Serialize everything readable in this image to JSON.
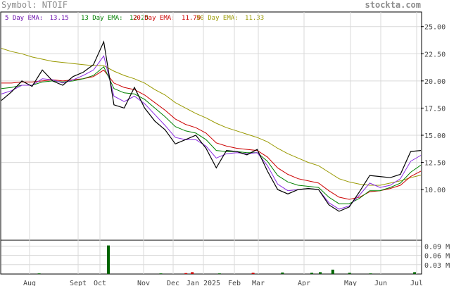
{
  "header": {
    "symbol_label": "Symbol: NTOIF",
    "brand": "stockta.com"
  },
  "legend": [
    {
      "label": "5 Day EMA:",
      "value": "13.15",
      "color": "#000000",
      "text_color": "#6a0dad"
    },
    {
      "label": "13 Day EMA:",
      "value": "12.25",
      "color": "#008000",
      "text_color": "#008000"
    },
    {
      "label": "20 Day EMA:",
      "value": "11.70",
      "color": "#cc0000",
      "text_color": "#cc0000"
    },
    {
      "label": "50 Day EMA:",
      "value": "11.33",
      "color": "#999900",
      "text_color": "#999900"
    }
  ],
  "chart_data": [
    {
      "type": "line",
      "ylim": [
        8,
        25.5
      ],
      "yticks": [
        "25.00",
        "22.50",
        "20.00",
        "17.50",
        "15.00",
        "12.50",
        "10.00"
      ],
      "xticks": [
        "Aug",
        "Sept",
        "Oct",
        "Nov",
        "Dec",
        "Jan 2025",
        "Feb",
        "Mar",
        "Apr",
        "May",
        "Jun",
        "Jul"
      ],
      "grid": true,
      "series": [
        {
          "name": "Price",
          "color": "#000000",
          "values": [
            18.2,
            19.0,
            20.0,
            19.5,
            21.0,
            20.0,
            19.6,
            20.4,
            20.8,
            21.5,
            23.6,
            17.8,
            17.5,
            19.4,
            17.5,
            16.3,
            15.5,
            14.2,
            14.6,
            15.0,
            13.8,
            12.0,
            13.6,
            13.5,
            13.2,
            13.7,
            11.7,
            10.0,
            9.6,
            10.0,
            10.1,
            10.0,
            8.6,
            8.0,
            8.4,
            9.8,
            11.3,
            11.2,
            11.1,
            11.4,
            13.5,
            13.6
          ]
        },
        {
          "name": "5 Day EMA",
          "color": "#8a2be2",
          "values": [
            18.8,
            19.1,
            19.6,
            19.6,
            20.2,
            20.1,
            19.8,
            20.1,
            20.5,
            21.0,
            22.3,
            18.6,
            18.1,
            18.6,
            17.9,
            16.9,
            15.9,
            14.8,
            14.6,
            14.6,
            14.0,
            12.9,
            13.3,
            13.4,
            13.3,
            13.4,
            12.2,
            10.5,
            9.9,
            10.0,
            10.1,
            10.0,
            8.8,
            8.2,
            8.5,
            9.5,
            10.6,
            10.2,
            10.4,
            11.0,
            12.6,
            13.15
          ]
        },
        {
          "name": "13 Day EMA",
          "color": "#008000",
          "values": [
            19.3,
            19.4,
            19.6,
            19.6,
            19.9,
            20.0,
            19.9,
            20.0,
            20.2,
            20.5,
            21.3,
            19.3,
            18.9,
            18.8,
            18.3,
            17.5,
            16.7,
            15.8,
            15.4,
            15.2,
            14.6,
            13.6,
            13.5,
            13.5,
            13.4,
            13.4,
            12.6,
            11.3,
            10.7,
            10.4,
            10.3,
            10.2,
            9.3,
            8.7,
            8.7,
            9.2,
            9.9,
            9.9,
            10.2,
            10.6,
            11.6,
            12.25
          ]
        },
        {
          "name": "20 Day EMA",
          "color": "#cc0000",
          "values": [
            19.8,
            19.8,
            19.9,
            19.9,
            20.0,
            20.1,
            20.0,
            20.1,
            20.2,
            20.4,
            21.0,
            19.8,
            19.4,
            19.2,
            18.7,
            18.0,
            17.3,
            16.5,
            16.0,
            15.7,
            15.2,
            14.3,
            14.0,
            13.8,
            13.7,
            13.6,
            13.0,
            12.0,
            11.4,
            11.0,
            10.8,
            10.6,
            9.9,
            9.3,
            9.1,
            9.3,
            9.8,
            9.9,
            10.1,
            10.4,
            11.2,
            11.7
          ]
        },
        {
          "name": "50 Day EMA",
          "color": "#999900",
          "values": [
            23.0,
            22.7,
            22.5,
            22.2,
            22.0,
            21.8,
            21.7,
            21.6,
            21.5,
            21.4,
            21.4,
            20.9,
            20.5,
            20.2,
            19.8,
            19.2,
            18.7,
            18.0,
            17.5,
            17.0,
            16.6,
            16.1,
            15.7,
            15.4,
            15.1,
            14.8,
            14.4,
            13.8,
            13.3,
            12.9,
            12.5,
            12.2,
            11.6,
            11.0,
            10.7,
            10.5,
            10.4,
            10.4,
            10.6,
            10.8,
            11.1,
            11.33
          ]
        }
      ]
    },
    {
      "type": "bar",
      "ylim": [
        0,
        0.1
      ],
      "yticks": [
        "0.09 M",
        "0.06 M",
        "0.03 M"
      ],
      "grid": true,
      "categories": [
        "Aug",
        "Sept",
        "Oct",
        "Nov",
        "Dec",
        "Jan 2025",
        "Feb",
        "Mar",
        "Apr",
        "May",
        "Jun",
        "Jul"
      ],
      "values": [
        {
          "x": 0.09,
          "v": 0.002,
          "color": "#006400"
        },
        {
          "x": 0.255,
          "v": 0.092,
          "color": "#006400"
        },
        {
          "x": 0.38,
          "v": 0.002,
          "color": "#006400"
        },
        {
          "x": 0.44,
          "v": 0.003,
          "color": "#cc0000"
        },
        {
          "x": 0.455,
          "v": 0.006,
          "color": "#cc0000"
        },
        {
          "x": 0.52,
          "v": 0.002,
          "color": "#006400"
        },
        {
          "x": 0.6,
          "v": 0.004,
          "color": "#cc0000"
        },
        {
          "x": 0.67,
          "v": 0.005,
          "color": "#006400"
        },
        {
          "x": 0.74,
          "v": 0.004,
          "color": "#006400"
        },
        {
          "x": 0.76,
          "v": 0.006,
          "color": "#006400"
        },
        {
          "x": 0.79,
          "v": 0.014,
          "color": "#006400"
        },
        {
          "x": 0.83,
          "v": 0.004,
          "color": "#006400"
        },
        {
          "x": 0.88,
          "v": 0.002,
          "color": "#006400"
        },
        {
          "x": 0.985,
          "v": 0.006,
          "color": "#006400"
        }
      ]
    }
  ]
}
